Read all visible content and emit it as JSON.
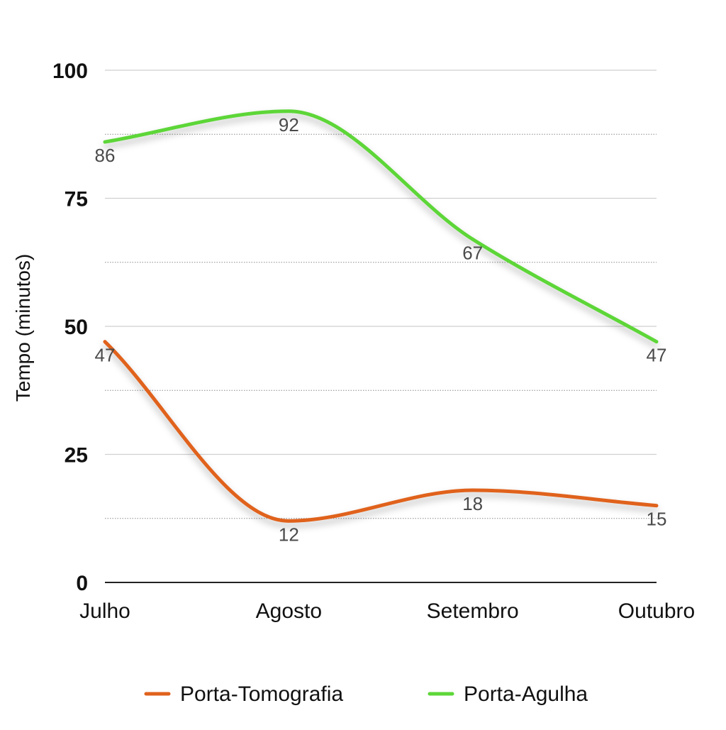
{
  "chart_data": {
    "type": "line",
    "categories": [
      "Julho",
      "Agosto",
      "Setembro",
      "Outubro"
    ],
    "series": [
      {
        "name": "Porta-Tomografia",
        "values": [
          47,
          12,
          18,
          15
        ],
        "color": "#e0621d"
      },
      {
        "name": "Porta-Agulha",
        "values": [
          86,
          92,
          67,
          47
        ],
        "color": "#5dd639"
      }
    ],
    "ylabel": "Tempo (minutos)",
    "xlabel": "",
    "ylim": [
      0,
      100
    ],
    "yticks": [
      0,
      25,
      50,
      75,
      100
    ],
    "grid": true,
    "smooth": true,
    "data_labels": true,
    "legend_position": "bottom"
  }
}
